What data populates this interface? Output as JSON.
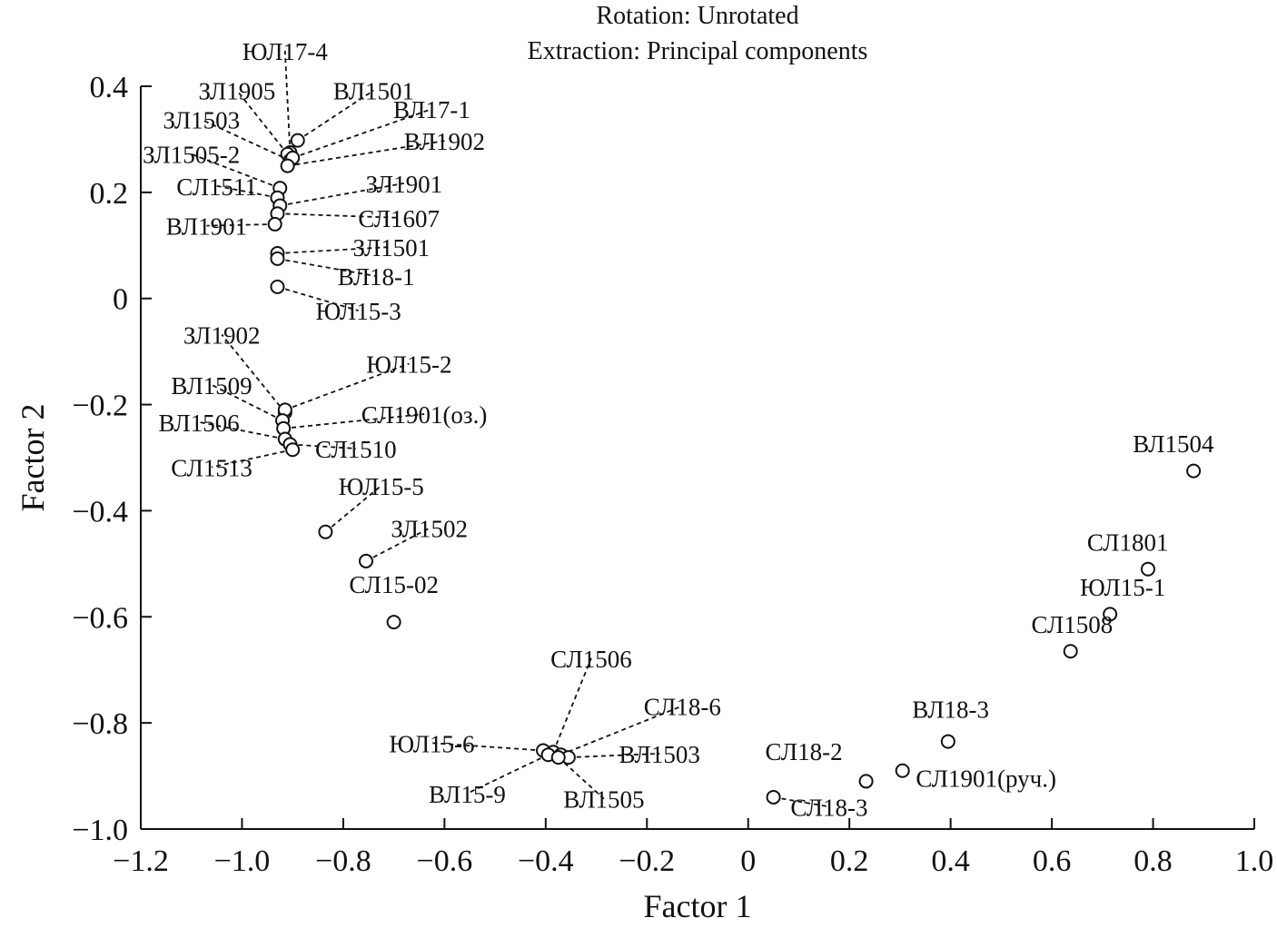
{
  "chart_data": {
    "type": "scatter",
    "subtitle": [
      "Rotation: Unrotated",
      "Extraction: Principal components"
    ],
    "xlabel": "Factor 1",
    "ylabel": "Factor 2",
    "xlim": [
      -1.2,
      1.0
    ],
    "ylim": [
      -1.0,
      0.4
    ],
    "xticks": [
      -1.2,
      -1.0,
      -0.8,
      -0.6,
      -0.4,
      -0.2,
      0,
      0.2,
      0.4,
      0.6,
      0.8,
      1.0
    ],
    "yticks": [
      0.4,
      0.2,
      0,
      -0.2,
      -0.4,
      -0.6,
      -0.8,
      -1.0
    ],
    "xtick_labels": [
      "−1.2",
      "−1.0",
      "−0.8",
      "−0.6",
      "−0.4",
      "−0.2",
      "0",
      "0.2",
      "0.4",
      "0.6",
      "0.8",
      "1.0"
    ],
    "ytick_labels": [
      "0.4",
      "0.2",
      "0",
      "−0.2",
      "−0.4",
      "−0.6",
      "−0.8",
      "−1.0"
    ],
    "grid": false,
    "points": [
      {
        "label": "ЮЛ17-4",
        "x": -0.905,
        "y": 0.275,
        "lx": -0.915,
        "ly": 0.45,
        "leader": true
      },
      {
        "label": "ЗЛ1905",
        "x": -0.91,
        "y": 0.272,
        "lx": -1.01,
        "ly": 0.375,
        "leader": true
      },
      {
        "label": "ВЛ1501",
        "x": -0.89,
        "y": 0.298,
        "lx": -0.74,
        "ly": 0.375,
        "leader": true
      },
      {
        "label": "ЗЛ1503",
        "x": -0.905,
        "y": 0.26,
        "lx": -1.08,
        "ly": 0.32,
        "leader": true
      },
      {
        "label": "ВЛ17-1",
        "x": -0.9,
        "y": 0.265,
        "lx": -0.625,
        "ly": 0.34,
        "leader": true
      },
      {
        "label": "ВЛ1902",
        "x": -0.91,
        "y": 0.25,
        "lx": -0.6,
        "ly": 0.28,
        "leader": true
      },
      {
        "label": "ЗЛ1505-2",
        "x": -0.925,
        "y": 0.208,
        "lx": -1.1,
        "ly": 0.255,
        "leader": true
      },
      {
        "label": "СЛ1511",
        "x": -0.93,
        "y": 0.19,
        "lx": -1.05,
        "ly": 0.195,
        "leader": true
      },
      {
        "label": "ЗЛ1901",
        "x": -0.925,
        "y": 0.175,
        "lx": -0.68,
        "ly": 0.2,
        "leader": true
      },
      {
        "label": "СЛ1607",
        "x": -0.93,
        "y": 0.16,
        "lx": -0.69,
        "ly": 0.135,
        "leader": true
      },
      {
        "label": "ВЛ1901",
        "x": -0.935,
        "y": 0.14,
        "lx": -1.07,
        "ly": 0.12,
        "leader": true
      },
      {
        "label": "ЗЛ1501",
        "x": -0.93,
        "y": 0.085,
        "lx": -0.705,
        "ly": 0.08,
        "leader": true
      },
      {
        "label": "ВЛ18-1",
        "x": -0.93,
        "y": 0.075,
        "lx": -0.735,
        "ly": 0.025,
        "leader": true
      },
      {
        "label": "ЮЛ15-3",
        "x": -0.93,
        "y": 0.022,
        "lx": -0.77,
        "ly": -0.04,
        "leader": true
      },
      {
        "label": "ЗЛ1902",
        "x": -0.915,
        "y": -0.215,
        "lx": -1.04,
        "ly": -0.085,
        "leader": true
      },
      {
        "label": "ЮЛ15-2",
        "x": -0.915,
        "y": -0.21,
        "lx": -0.67,
        "ly": -0.14,
        "leader": true
      },
      {
        "label": "ВЛ1509",
        "x": -0.92,
        "y": -0.23,
        "lx": -1.06,
        "ly": -0.18,
        "leader": true
      },
      {
        "label": "СЛ1901(оз.)",
        "x": -0.918,
        "y": -0.245,
        "lx": -0.64,
        "ly": -0.235,
        "leader": true
      },
      {
        "label": "ВЛ1506",
        "x": -0.915,
        "y": -0.265,
        "lx": -1.085,
        "ly": -0.25,
        "leader": true
      },
      {
        "label": "СЛ1510",
        "x": -0.905,
        "y": -0.275,
        "lx": -0.775,
        "ly": -0.3,
        "leader": true
      },
      {
        "label": "СЛ1513",
        "x": -0.9,
        "y": -0.285,
        "lx": -1.06,
        "ly": -0.335,
        "leader": true
      },
      {
        "label": "ЮЛ15-5",
        "x": -0.835,
        "y": -0.44,
        "lx": -0.725,
        "ly": -0.37,
        "leader": true
      },
      {
        "label": "ЗЛ1502",
        "x": -0.755,
        "y": -0.495,
        "lx": -0.63,
        "ly": -0.45,
        "leader": true
      },
      {
        "label": "СЛ15-02",
        "x": -0.7,
        "y": -0.61,
        "lx": -0.7,
        "ly": -0.555,
        "leader": false
      },
      {
        "label": "СЛ1506",
        "x": -0.385,
        "y": -0.855,
        "lx": -0.31,
        "ly": -0.695,
        "leader": true
      },
      {
        "label": "СЛ18-6",
        "x": -0.37,
        "y": -0.86,
        "lx": -0.13,
        "ly": -0.785,
        "leader": true
      },
      {
        "label": "ЮЛ15-6",
        "x": -0.405,
        "y": -0.852,
        "lx": -0.625,
        "ly": -0.855,
        "leader": true
      },
      {
        "label": "ВЛ1503",
        "x": -0.355,
        "y": -0.865,
        "lx": -0.175,
        "ly": -0.875,
        "leader": true
      },
      {
        "label": "ВЛ15-9",
        "x": -0.395,
        "y": -0.86,
        "lx": -0.555,
        "ly": -0.95,
        "leader": true
      },
      {
        "label": "ВЛ1505",
        "x": -0.375,
        "y": -0.865,
        "lx": -0.285,
        "ly": -0.96,
        "leader": true
      },
      {
        "label": "СЛ18-2",
        "x": 0.233,
        "y": -0.91,
        "lx": 0.11,
        "ly": -0.87,
        "leader": false
      },
      {
        "label": "СЛ18-3",
        "x": 0.05,
        "y": -0.94,
        "lx": 0.16,
        "ly": -0.975,
        "leader": true
      },
      {
        "label": "СЛ1901(руч.)",
        "x": 0.305,
        "y": -0.89,
        "lx": 0.47,
        "ly": -0.92,
        "leader": false
      },
      {
        "label": "ВЛ18-3",
        "x": 0.395,
        "y": -0.835,
        "lx": 0.4,
        "ly": -0.79,
        "leader": false
      },
      {
        "label": "ВЛ1504",
        "x": 0.88,
        "y": -0.325,
        "lx": 0.84,
        "ly": -0.29,
        "leader": false
      },
      {
        "label": "СЛ1801",
        "x": 0.79,
        "y": -0.51,
        "lx": 0.75,
        "ly": -0.475,
        "leader": false
      },
      {
        "label": "ЮЛ15-1",
        "x": 0.715,
        "y": -0.595,
        "lx": 0.74,
        "ly": -0.56,
        "leader": false
      },
      {
        "label": "СЛ1508",
        "x": 0.637,
        "y": -0.665,
        "lx": 0.64,
        "ly": -0.63,
        "leader": false
      }
    ]
  }
}
